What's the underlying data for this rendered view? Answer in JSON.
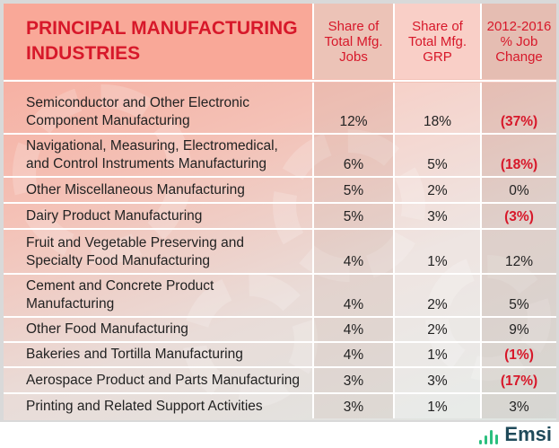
{
  "header": {
    "title_line1": "PRINCIPAL MANUFACTURING",
    "title_line2": "INDUSTRIES",
    "col_jobs": [
      "Share of",
      "Total Mfg.",
      "Jobs"
    ],
    "col_grp": [
      "Share of",
      "Total Mfg.",
      "GRP"
    ],
    "col_change": [
      "2012-2016",
      "% Job",
      "Change"
    ]
  },
  "rows": [
    {
      "name": [
        "Semiconductor and Other Electronic",
        "Component Manufacturing"
      ],
      "jobs": "12%",
      "grp": "18%",
      "change": "(37%)",
      "negative": true
    },
    {
      "name": [
        "Navigational, Measuring, Electromedical,",
        "and Control Instruments Manufacturing"
      ],
      "jobs": "6%",
      "grp": "5%",
      "change": "(18%)",
      "negative": true
    },
    {
      "name": [
        "Other Miscellaneous Manufacturing"
      ],
      "jobs": "5%",
      "grp": "2%",
      "change": "0%",
      "negative": false
    },
    {
      "name": [
        "Dairy Product Manufacturing"
      ],
      "jobs": "5%",
      "grp": "3%",
      "change": "(3%)",
      "negative": true
    },
    {
      "name": [
        "Fruit and Vegetable Preserving and",
        "Specialty Food Manufacturing"
      ],
      "jobs": "4%",
      "grp": "1%",
      "change": "12%",
      "negative": false
    },
    {
      "name": [
        "Cement and Concrete Product",
        "Manufacturing"
      ],
      "jobs": "4%",
      "grp": "2%",
      "change": "5%",
      "negative": false
    },
    {
      "name": [
        "Other Food Manufacturing"
      ],
      "jobs": "4%",
      "grp": "2%",
      "change": "9%",
      "negative": false
    },
    {
      "name": [
        "Bakeries and Tortilla Manufacturing"
      ],
      "jobs": "4%",
      "grp": "1%",
      "change": "(1%)",
      "negative": true
    },
    {
      "name": [
        "Aerospace Product and Parts Manufacturing"
      ],
      "jobs": "3%",
      "grp": "3%",
      "change": "(17%)",
      "negative": true
    },
    {
      "name": [
        "Printing and Related Support Activities"
      ],
      "jobs": "3%",
      "grp": "1%",
      "change": "3%",
      "negative": false
    }
  ],
  "colors": {
    "accent_red": "#d7182a",
    "logo_green": "#2bbf7e",
    "logo_text": "#1f4a5a"
  },
  "logo": {
    "text": "Emsi"
  }
}
